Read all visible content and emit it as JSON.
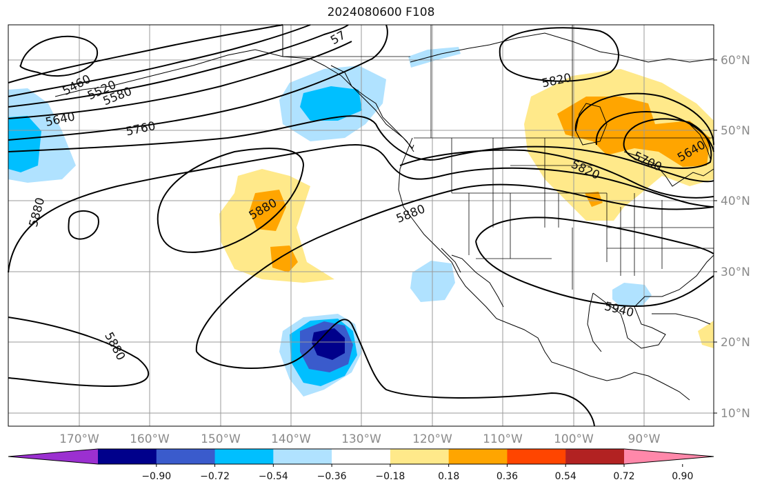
{
  "title": "2024080600 F108",
  "map": {
    "lat_ticks": [
      "60°N",
      "50°N",
      "40°N",
      "30°N",
      "20°N",
      "10°N"
    ],
    "lon_ticks": [
      "170°W",
      "160°W",
      "150°W",
      "140°W",
      "130°W",
      "120°W",
      "110°W",
      "100°W",
      "90°W"
    ]
  },
  "contour_labels": [
    "5460",
    "5520",
    "5580",
    "5640",
    "5760",
    "57",
    "5820",
    "5820",
    "5700",
    "5640",
    "5880",
    "5880",
    "5880",
    "5880",
    "5940"
  ],
  "colorbar": {
    "ticks": [
      "−0.90",
      "−0.72",
      "−0.54",
      "−0.36",
      "−0.18",
      "0.18",
      "0.36",
      "0.54",
      "0.72",
      "0.90"
    ],
    "colors": [
      "#9b30d0",
      "#00008b",
      "#3a5bcc",
      "#00bfff",
      "#b0e2ff",
      "#ffffff",
      "#ffe98a",
      "#ffa500",
      "#ff4500",
      "#b22222",
      "#ff88aa"
    ]
  },
  "colors": {
    "contour": "#000000",
    "coast": "#000000",
    "grid": "#9a9a9a"
  }
}
